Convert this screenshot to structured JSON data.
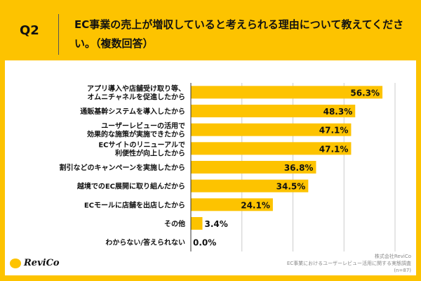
{
  "header": {
    "q": "Q2",
    "title": "EC事業の売上が増収していると考えられる理由について教えてください。（複数回答）"
  },
  "chart_data": {
    "type": "bar",
    "orientation": "horizontal",
    "categories": [
      "アプリ導入や店舗受け取り等、\nオムニチャネルを促進したから",
      "通販基幹システムを導入したから",
      "ユーザーレビューの活用で\n効果的な施策が実施できたから",
      "ECサイトのリニューアルで\n利便性が向上したから",
      "割引などのキャンペーンを実施したから",
      "越境でのEC展開に取り組んだから",
      "ECモールに店舗を出店したから",
      "その他",
      "わからない/答えられない"
    ],
    "values": [
      56.3,
      48.3,
      47.1,
      47.1,
      36.8,
      34.5,
      24.1,
      3.4,
      0.0
    ],
    "labels": [
      "56.3%",
      "48.3%",
      "47.1%",
      "47.1%",
      "36.8%",
      "34.5%",
      "24.1%",
      "3.4%",
      "0.0%"
    ],
    "xlim": [
      0,
      60
    ],
    "grid": true,
    "bar_color": "#FDC300"
  },
  "footer": {
    "logo": "ReviCo",
    "company": "株式会社ReviCo",
    "survey": "EC事業におけるユーザーレビュー活用に関する実態調査",
    "n": "(n=87)"
  }
}
